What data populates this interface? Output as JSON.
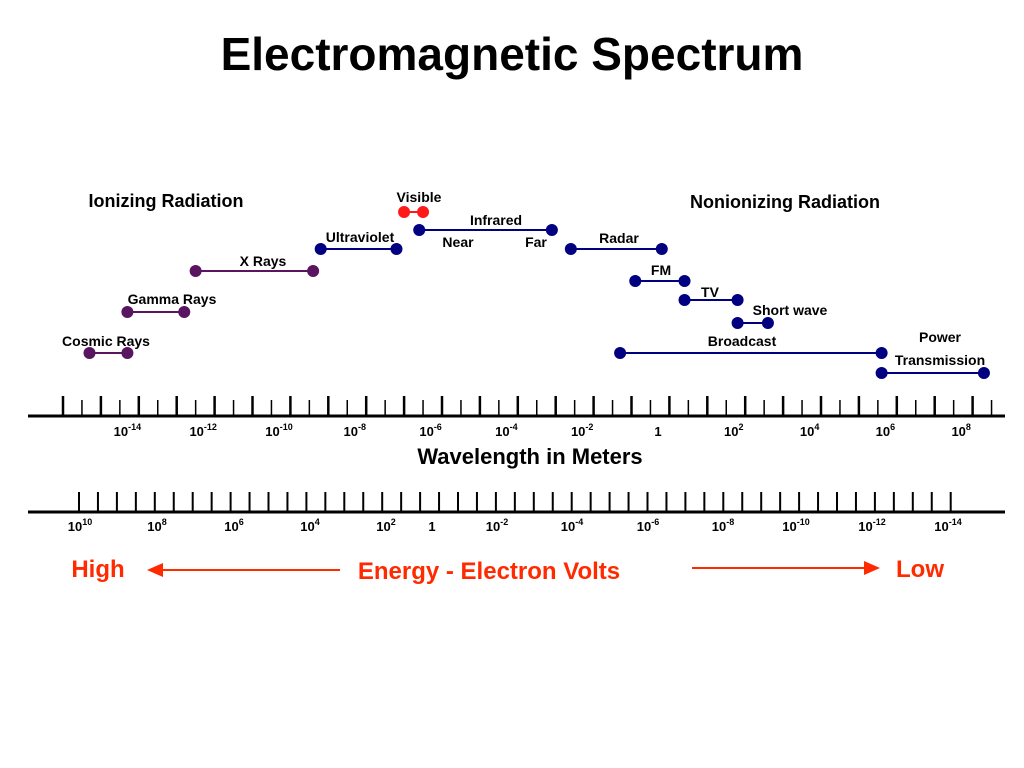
{
  "title": "Electromagnetic Spectrum",
  "sections": {
    "ionizing": "Ionizing Radiation",
    "nonionizing": "Nonionizing Radiation"
  },
  "colors": {
    "ionizing": "#5a1560",
    "nonionizing": "#000080",
    "visible": "#ff1a1a",
    "energy": "#ff2a00",
    "axis": "#000000"
  },
  "bands": [
    {
      "id": "cosmic",
      "label": "Cosmic Rays",
      "kind": "ionizing",
      "from_exp": -15,
      "to_exp": -14
    },
    {
      "id": "gamma",
      "label": "Gamma Rays",
      "kind": "ionizing",
      "from_exp": -14,
      "to_exp": -12.5
    },
    {
      "id": "xrays",
      "label": "X Rays",
      "kind": "ionizing",
      "from_exp": -12.2,
      "to_exp": -9.1
    },
    {
      "id": "ultraviolet",
      "label": "Ultraviolet",
      "kind": "nonionizing",
      "from_exp": -8.9,
      "to_exp": -6.9
    },
    {
      "id": "visible",
      "label": "Visible",
      "kind": "visible",
      "from_exp": -6.7,
      "to_exp": -6.2
    },
    {
      "id": "infrared",
      "label": "Infrared",
      "kind": "nonionizing",
      "from_exp": -6.3,
      "to_exp": -2.8,
      "near_label": "Near",
      "far_label": "Far"
    },
    {
      "id": "radar",
      "label": "Radar",
      "kind": "nonionizing",
      "from_exp": -2.3,
      "to_exp": 0.1
    },
    {
      "id": "fm",
      "label": "FM",
      "kind": "nonionizing",
      "from_exp": -0.6,
      "to_exp": 0.7
    },
    {
      "id": "tv",
      "label": "TV",
      "kind": "nonionizing",
      "from_exp": 0.7,
      "to_exp": 2.1
    },
    {
      "id": "shortwave",
      "label": "Short wave",
      "kind": "nonionizing",
      "from_exp": 2.1,
      "to_exp": 2.9
    },
    {
      "id": "broadcast",
      "label": "Broadcast",
      "kind": "nonionizing",
      "from_exp": -1.0,
      "to_exp": 5.9
    },
    {
      "id": "power",
      "label": "Power Transmission",
      "label_lines": [
        "Power",
        "Transmission"
      ],
      "kind": "nonionizing",
      "from_exp": 5.9,
      "to_exp": 8.6
    }
  ],
  "wavelength_axis": {
    "title": "Wavelength in Meters",
    "labels": [
      {
        "base": "10",
        "exp": "-14",
        "value_exp": -14
      },
      {
        "base": "10",
        "exp": "-12",
        "value_exp": -12
      },
      {
        "base": "10",
        "exp": "-10",
        "value_exp": -10
      },
      {
        "base": "10",
        "exp": "-8",
        "value_exp": -8
      },
      {
        "base": "10",
        "exp": "-6",
        "value_exp": -6
      },
      {
        "base": "10",
        "exp": "-4",
        "value_exp": -4
      },
      {
        "base": "10",
        "exp": "-2",
        "value_exp": -2
      },
      {
        "base": "1",
        "exp": "",
        "value_exp": 0
      },
      {
        "base": "10",
        "exp": "2",
        "value_exp": 2
      },
      {
        "base": "10",
        "exp": "4",
        "value_exp": 4
      },
      {
        "base": "10",
        "exp": "6",
        "value_exp": 6
      },
      {
        "base": "10",
        "exp": "8",
        "value_exp": 8
      }
    ]
  },
  "energy_axis": {
    "title": "Energy - Electron Volts",
    "high_label": "High",
    "low_label": "Low",
    "labels": [
      {
        "base": "10",
        "exp": "10"
      },
      {
        "base": "10",
        "exp": "8"
      },
      {
        "base": "10",
        "exp": "6"
      },
      {
        "base": "10",
        "exp": "4"
      },
      {
        "base": "10",
        "exp": "2"
      },
      {
        "base": "1",
        "exp": ""
      },
      {
        "base": "10",
        "exp": "-2"
      },
      {
        "base": "10",
        "exp": "-4"
      },
      {
        "base": "10",
        "exp": "-6"
      },
      {
        "base": "10",
        "exp": "-8"
      },
      {
        "base": "10",
        "exp": "-10"
      },
      {
        "base": "10",
        "exp": "-12"
      },
      {
        "base": "10",
        "exp": "-14"
      }
    ]
  }
}
